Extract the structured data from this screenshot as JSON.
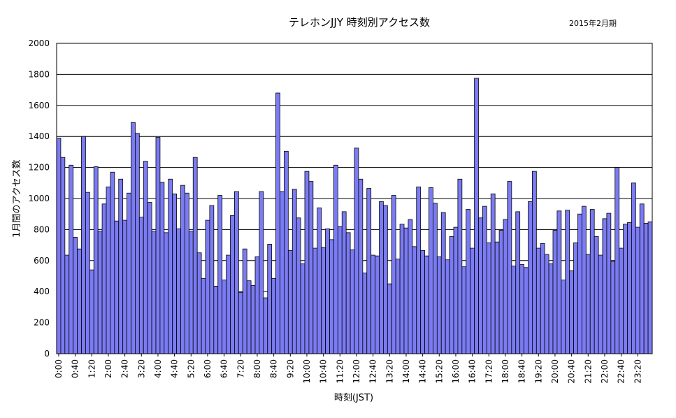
{
  "chart_data": {
    "type": "bar",
    "title": "テレホンJJY  時刻別アクセス数",
    "subtitle": "2015年2月期",
    "xlabel": "時刻(JST)",
    "ylabel": "1月間のアクセス数",
    "ylim": [
      0,
      2000
    ],
    "yticks": [
      0,
      200,
      400,
      600,
      800,
      1000,
      1200,
      1400,
      1600,
      1800,
      2000
    ],
    "grid": true,
    "legend": "none",
    "colors": {
      "bar_fill": "#7b7bf3",
      "bar_stroke": "#000000",
      "grid": "#000000"
    },
    "xtick_labels": [
      "0:00",
      "0:40",
      "1:20",
      "2:00",
      "2:40",
      "3:20",
      "4:00",
      "4:40",
      "5:20",
      "6:00",
      "6:40",
      "7:20",
      "8:00",
      "8:40",
      "9:20",
      "10:00",
      "10:40",
      "11:20",
      "12:00",
      "12:40",
      "13:20",
      "14:00",
      "14:40",
      "15:20",
      "16:00",
      "16:40",
      "17:20",
      "18:00",
      "18:40",
      "19:20",
      "20:00",
      "20:40",
      "21:20",
      "22:00",
      "22:40",
      "23:20"
    ],
    "interval_minutes": 10,
    "values": [
      1390,
      1265,
      635,
      1215,
      750,
      675,
      1400,
      1040,
      540,
      1205,
      790,
      965,
      1075,
      1170,
      855,
      1125,
      860,
      1035,
      1490,
      1420,
      880,
      1240,
      975,
      790,
      1395,
      1105,
      780,
      1125,
      1030,
      805,
      1085,
      1035,
      790,
      1265,
      650,
      485,
      860,
      955,
      435,
      1020,
      475,
      635,
      890,
      1045,
      395,
      675,
      470,
      440,
      625,
      1045,
      360,
      705,
      485,
      1680,
      1045,
      1305,
      665,
      1060,
      875,
      580,
      1175,
      1110,
      680,
      940,
      685,
      805,
      735,
      1215,
      820,
      915,
      780,
      670,
      1325,
      1125,
      520,
      1065,
      635,
      630,
      980,
      955,
      450,
      1020,
      610,
      835,
      810,
      865,
      690,
      1075,
      665,
      630,
      1070,
      970,
      625,
      910,
      605,
      755,
      815,
      1125,
      560,
      930,
      680,
      1775,
      875,
      950,
      715,
      1030,
      720,
      795,
      865,
      1110,
      565,
      915,
      575,
      555,
      980,
      1175,
      680,
      710,
      640,
      580,
      795,
      920,
      475,
      925,
      535,
      715,
      900,
      950,
      640,
      930,
      755,
      635,
      870,
      905,
      595,
      1200,
      680,
      835,
      845,
      1100,
      815,
      965,
      840,
      850
    ]
  }
}
